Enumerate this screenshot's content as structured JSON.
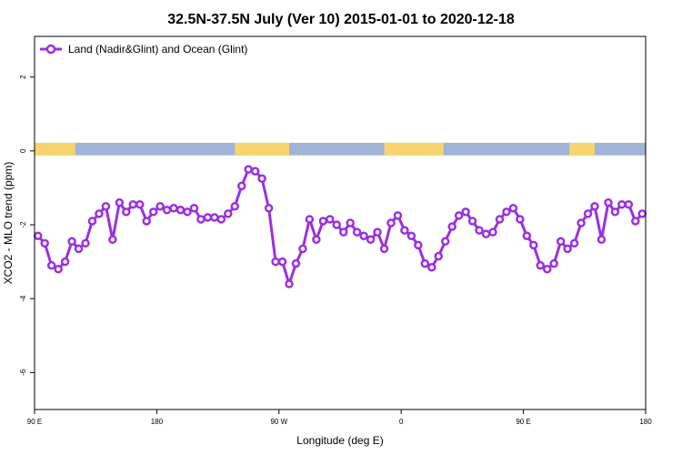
{
  "chart_data": {
    "type": "line",
    "title": "32.5N-37.5N July (Ver 10)   2015-01-01 to 2020-12-18",
    "xlabel": "Longitude (deg E)",
    "ylabel": "XCO2 - MLO trend (ppm)",
    "xlim": [
      90,
      450
    ],
    "ylim": [
      -7,
      3.1
    ],
    "x_ticks": [
      90,
      162,
      234,
      306,
      378,
      450
    ],
    "x_tick_labels": [
      "90 E",
      "180",
      "90 W",
      "0",
      "90 E",
      "180"
    ],
    "y_ticks": [
      2,
      0,
      -2,
      -4,
      -6
    ],
    "y_tick_labels": [
      "2",
      "0",
      "-2",
      "-4",
      "-6"
    ],
    "legend": {
      "position": "top-left",
      "label": "Land (Nadir&Glint) and Ocean (Glint)"
    },
    "colors": {
      "line": "#9b30e0",
      "land": "#f7d46e",
      "ocean": "#9fb4d6"
    },
    "land_ocean_strip": {
      "y_range": [
        -0.12,
        0.22
      ],
      "land_segments": [
        [
          90,
          114
        ],
        [
          208,
          240
        ],
        [
          296,
          331
        ],
        [
          405,
          420
        ]
      ]
    },
    "series": [
      {
        "name": "Land (Nadir&Glint) and Ocean (Glint)",
        "x": [
          92,
          96,
          100,
          104,
          108,
          112,
          116,
          120,
          124,
          128,
          132,
          136,
          140,
          144,
          148,
          152,
          156,
          160,
          164,
          168,
          172,
          176,
          180,
          184,
          188,
          192,
          196,
          200,
          204,
          208,
          212,
          216,
          220,
          224,
          228,
          232,
          236,
          240,
          244,
          248,
          252,
          256,
          260,
          264,
          268,
          272,
          276,
          280,
          284,
          288,
          292,
          296,
          300,
          304,
          308,
          312,
          316,
          320,
          324,
          328,
          332,
          336,
          340,
          344,
          348,
          352,
          356,
          360,
          364,
          368,
          372,
          376,
          380,
          384,
          388,
          392,
          396,
          400,
          404,
          408,
          412,
          416,
          420,
          424,
          428,
          432,
          436,
          440,
          444,
          448
        ],
        "values": [
          -2.3,
          -2.5,
          -3.1,
          -3.2,
          -3.0,
          -2.45,
          -2.65,
          -2.5,
          -1.9,
          -1.7,
          -1.5,
          -2.4,
          -1.4,
          -1.65,
          -1.45,
          -1.45,
          -1.9,
          -1.65,
          -1.5,
          -1.6,
          -1.55,
          -1.6,
          -1.65,
          -1.55,
          -1.85,
          -1.8,
          -1.8,
          -1.85,
          -1.7,
          -1.5,
          -0.95,
          -0.5,
          -0.55,
          -0.75,
          -1.55,
          -3.0,
          -3.0,
          -3.6,
          -3.05,
          -2.65,
          -1.85,
          -2.4,
          -1.9,
          -1.85,
          -2.0,
          -2.2,
          -1.95,
          -2.2,
          -2.3,
          -2.4,
          -2.2,
          -2.65,
          -1.95,
          -1.75,
          -2.15,
          -2.3,
          -2.55,
          -3.05,
          -3.15,
          -2.85,
          -2.45,
          -2.05,
          -1.75,
          -1.65,
          -1.9,
          -2.15,
          -2.25,
          -2.2,
          -1.85,
          -1.65,
          -1.55,
          -1.85,
          -2.3,
          -2.55,
          -3.1,
          -3.2,
          -3.05,
          -2.45,
          -2.65,
          -2.5,
          -1.95,
          -1.7,
          -1.5,
          -2.4,
          -1.4,
          -1.65,
          -1.45,
          -1.45,
          -1.9,
          -1.7
        ]
      }
    ]
  }
}
